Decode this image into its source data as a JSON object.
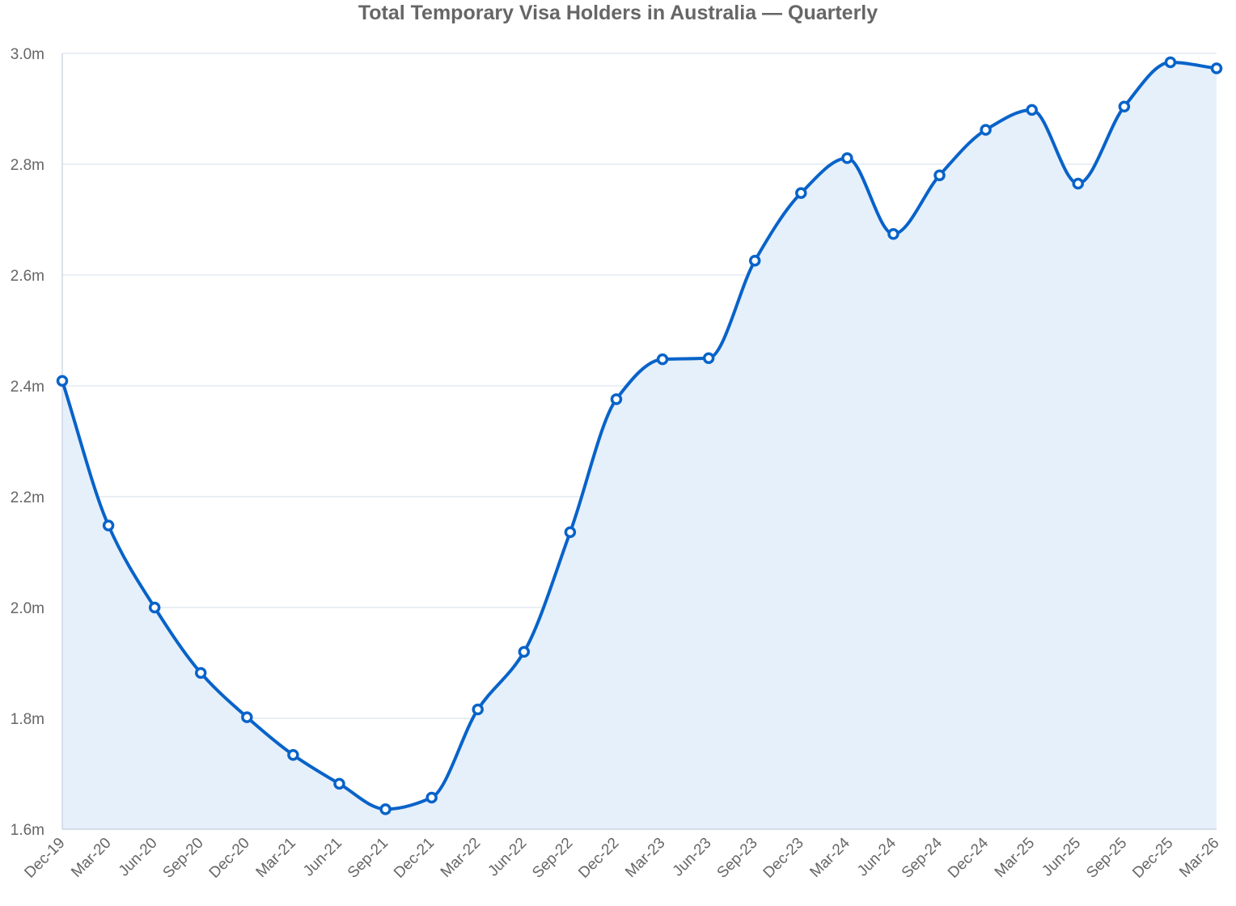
{
  "chart_data": {
    "type": "area",
    "title": "Total Temporary Visa Holders in Australia — Quarterly",
    "xlabel": "",
    "ylabel": "",
    "ylim": [
      1.6,
      3.0
    ],
    "yticks": [
      1.6,
      1.8,
      2.0,
      2.2,
      2.4,
      2.6,
      2.8,
      3.0
    ],
    "ytick_labels": [
      "1.6m",
      "1.8m",
      "2.0m",
      "2.2m",
      "2.4m",
      "2.6m",
      "2.8m",
      "3.0m"
    ],
    "grid": true,
    "categories": [
      "Dec-19",
      "Mar-20",
      "Jun-20",
      "Sep-20",
      "Dec-20",
      "Mar-21",
      "Jun-21",
      "Sep-21",
      "Dec-21",
      "Mar-22",
      "Jun-22",
      "Sep-22",
      "Dec-22",
      "Mar-23",
      "Jun-23",
      "Sep-23",
      "Dec-23",
      "Mar-24",
      "Jun-24",
      "Sep-24",
      "Dec-24",
      "Mar-25",
      "Jun-25",
      "Sep-25",
      "Dec-25",
      "Mar-26"
    ],
    "series": [
      {
        "color": "#0863c9",
        "fill_color": "#e6f0fa",
        "values": [
          2.409,
          2.148,
          2.0,
          1.882,
          1.802,
          1.734,
          1.682,
          1.636,
          1.657,
          1.816,
          1.92,
          2.136,
          2.376,
          2.448,
          2.45,
          2.626,
          2.748,
          2.811,
          2.674,
          2.78,
          2.862,
          2.898,
          2.765,
          2.904,
          2.984,
          2.973
        ]
      }
    ]
  }
}
